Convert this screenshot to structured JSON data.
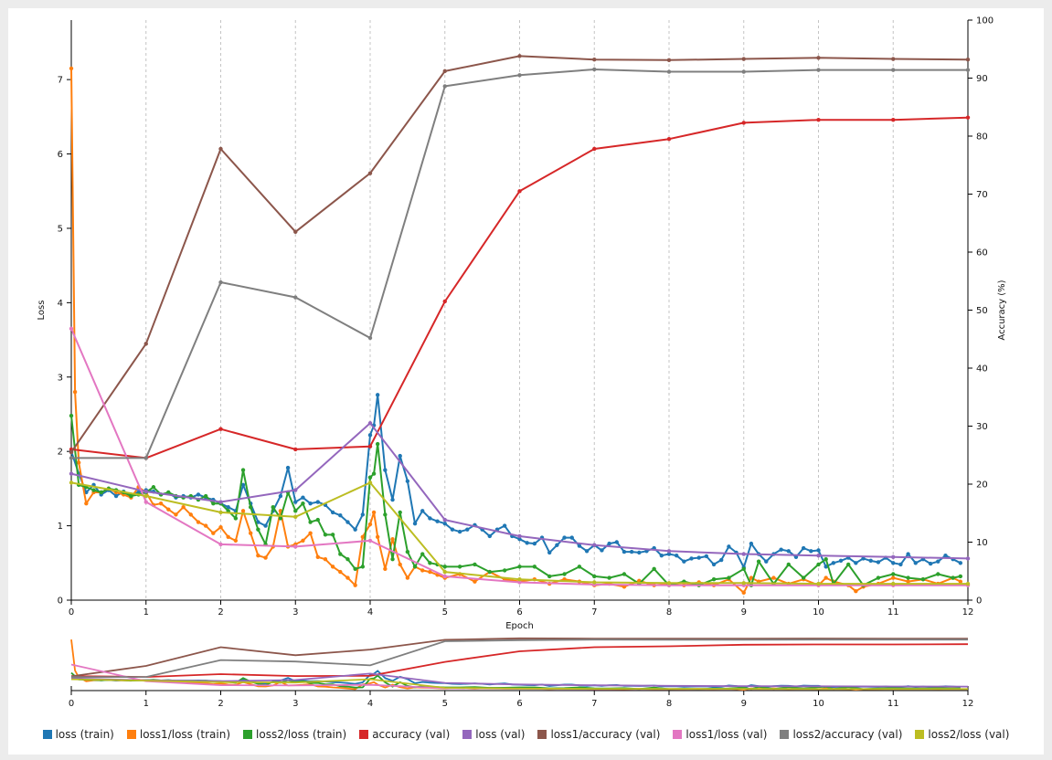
{
  "chart_data": {
    "type": "line",
    "title": "",
    "xlabel": "Epoch",
    "ylabel_left": "Loss",
    "ylabel_right": "Accuracy (%)",
    "xlim": [
      0,
      12
    ],
    "ylim_left": [
      0,
      7.8
    ],
    "ylim_right": [
      0,
      100
    ],
    "x_ticks": [
      0,
      1,
      2,
      3,
      4,
      5,
      6,
      7,
      8,
      9,
      10,
      11,
      12
    ],
    "y_ticks_left": [
      0,
      1,
      2,
      3,
      4,
      5,
      6,
      7
    ],
    "y_ticks_right": [
      0,
      10,
      20,
      30,
      40,
      50,
      60,
      70,
      80,
      90,
      100
    ],
    "grid": "vertical dashed at each epoch",
    "legend": "bottom",
    "series": [
      {
        "name": "loss (train)",
        "axis": "left",
        "color": "#1f77b4",
        "x": [
          0,
          0.1,
          0.2,
          0.3,
          0.4,
          0.5,
          0.6,
          0.7,
          0.8,
          0.9,
          1.0,
          1.1,
          1.2,
          1.3,
          1.4,
          1.5,
          1.6,
          1.7,
          1.8,
          1.9,
          2.0,
          2.1,
          2.2,
          2.3,
          2.4,
          2.5,
          2.6,
          2.7,
          2.8,
          2.9,
          3.0,
          3.1,
          3.2,
          3.3,
          3.4,
          3.5,
          3.6,
          3.7,
          3.8,
          3.9,
          4.0,
          4.05,
          4.1,
          4.2,
          4.3,
          4.4,
          4.5,
          4.6,
          4.7,
          4.8,
          4.9,
          5.0,
          5.1,
          5.2,
          5.3,
          5.4,
          5.5,
          5.6,
          5.7,
          5.8,
          5.9,
          6.0,
          6.1,
          6.2,
          6.3,
          6.4,
          6.5,
          6.6,
          6.7,
          6.8,
          6.9,
          7.0,
          7.1,
          7.2,
          7.3,
          7.4,
          7.5,
          7.6,
          7.7,
          7.8,
          7.9,
          8.0,
          8.1,
          8.2,
          8.3,
          8.4,
          8.5,
          8.6,
          8.7,
          8.8,
          8.9,
          9.0,
          9.1,
          9.2,
          9.3,
          9.4,
          9.5,
          9.6,
          9.7,
          9.8,
          9.9,
          10.0,
          10.1,
          10.2,
          10.3,
          10.4,
          10.5,
          10.6,
          10.7,
          10.8,
          10.9,
          11.0,
          11.1,
          11.2,
          11.3,
          11.4,
          11.5,
          11.6,
          11.7,
          11.8,
          11.9
        ],
        "y": [
          2.0,
          1.7,
          1.45,
          1.55,
          1.42,
          1.48,
          1.4,
          1.46,
          1.42,
          1.45,
          1.48,
          1.46,
          1.42,
          1.44,
          1.38,
          1.4,
          1.38,
          1.42,
          1.38,
          1.35,
          1.3,
          1.25,
          1.2,
          1.55,
          1.3,
          1.05,
          1.0,
          1.2,
          1.4,
          1.78,
          1.32,
          1.38,
          1.3,
          1.32,
          1.28,
          1.18,
          1.14,
          1.05,
          0.95,
          1.15,
          2.22,
          2.35,
          2.76,
          1.75,
          1.35,
          1.94,
          1.6,
          1.03,
          1.2,
          1.1,
          1.06,
          1.03,
          0.95,
          0.92,
          0.95,
          1.01,
          0.95,
          0.86,
          0.95,
          1.0,
          0.86,
          0.82,
          0.77,
          0.76,
          0.84,
          0.64,
          0.74,
          0.84,
          0.84,
          0.73,
          0.66,
          0.74,
          0.67,
          0.76,
          0.78,
          0.65,
          0.65,
          0.64,
          0.66,
          0.7,
          0.6,
          0.62,
          0.6,
          0.52,
          0.56,
          0.57,
          0.59,
          0.48,
          0.54,
          0.72,
          0.64,
          0.44,
          0.76,
          0.62,
          0.52,
          0.62,
          0.68,
          0.66,
          0.58,
          0.7,
          0.66,
          0.67,
          0.45,
          0.5,
          0.53,
          0.57,
          0.5,
          0.56,
          0.53,
          0.51,
          0.57,
          0.5,
          0.48,
          0.62,
          0.5,
          0.55,
          0.49,
          0.52,
          0.6,
          0.55,
          0.5
        ]
      },
      {
        "name": "loss1/loss (train)",
        "axis": "left",
        "color": "#ff7f0e",
        "x": [
          0,
          0.05,
          0.1,
          0.2,
          0.3,
          0.4,
          0.5,
          0.6,
          0.7,
          0.8,
          0.9,
          1.0,
          1.1,
          1.2,
          1.3,
          1.4,
          1.5,
          1.6,
          1.7,
          1.8,
          1.9,
          2.0,
          2.1,
          2.2,
          2.3,
          2.4,
          2.5,
          2.6,
          2.7,
          2.8,
          2.9,
          3.0,
          3.1,
          3.2,
          3.3,
          3.4,
          3.5,
          3.6,
          3.7,
          3.8,
          3.9,
          4.0,
          4.05,
          4.1,
          4.2,
          4.3,
          4.4,
          4.5,
          4.6,
          4.7,
          4.8,
          4.9,
          5.0,
          5.2,
          5.4,
          5.6,
          5.8,
          6.0,
          6.2,
          6.4,
          6.6,
          6.8,
          7.0,
          7.2,
          7.4,
          7.6,
          7.8,
          8.0,
          8.2,
          8.4,
          8.6,
          8.8,
          9.0,
          9.1,
          9.2,
          9.4,
          9.6,
          9.8,
          10.0,
          10.1,
          10.2,
          10.4,
          10.5,
          10.6,
          10.8,
          11.0,
          11.2,
          11.4,
          11.6,
          11.8,
          11.9
        ],
        "y": [
          7.15,
          2.8,
          1.85,
          1.3,
          1.45,
          1.45,
          1.5,
          1.45,
          1.42,
          1.38,
          1.52,
          1.45,
          1.28,
          1.3,
          1.22,
          1.15,
          1.25,
          1.15,
          1.05,
          1.0,
          0.9,
          0.98,
          0.85,
          0.8,
          1.2,
          0.9,
          0.6,
          0.57,
          0.72,
          1.2,
          0.72,
          0.75,
          0.8,
          0.9,
          0.58,
          0.55,
          0.45,
          0.38,
          0.3,
          0.2,
          0.85,
          1.02,
          1.18,
          0.85,
          0.42,
          0.82,
          0.48,
          0.3,
          0.45,
          0.4,
          0.38,
          0.34,
          0.3,
          0.35,
          0.25,
          0.38,
          0.28,
          0.25,
          0.28,
          0.22,
          0.28,
          0.25,
          0.2,
          0.22,
          0.18,
          0.26,
          0.2,
          0.22,
          0.2,
          0.24,
          0.2,
          0.28,
          0.1,
          0.3,
          0.25,
          0.3,
          0.22,
          0.28,
          0.2,
          0.3,
          0.25,
          0.2,
          0.12,
          0.18,
          0.22,
          0.3,
          0.25,
          0.28,
          0.22,
          0.3,
          0.25
        ]
      },
      {
        "name": "loss2/loss (train)",
        "axis": "left",
        "color": "#2ca02c",
        "x": [
          0,
          0.1,
          0.2,
          0.3,
          0.4,
          0.5,
          0.6,
          0.7,
          0.8,
          0.9,
          1.0,
          1.1,
          1.2,
          1.3,
          1.4,
          1.5,
          1.6,
          1.7,
          1.8,
          1.9,
          2.0,
          2.1,
          2.2,
          2.3,
          2.4,
          2.5,
          2.6,
          2.7,
          2.8,
          2.9,
          3.0,
          3.1,
          3.2,
          3.3,
          3.4,
          3.5,
          3.6,
          3.7,
          3.8,
          3.9,
          4.0,
          4.05,
          4.1,
          4.2,
          4.3,
          4.4,
          4.5,
          4.6,
          4.7,
          4.8,
          4.9,
          5.0,
          5.2,
          5.4,
          5.6,
          5.8,
          6.0,
          6.2,
          6.4,
          6.6,
          6.8,
          7.0,
          7.2,
          7.4,
          7.6,
          7.8,
          8.0,
          8.2,
          8.4,
          8.6,
          8.8,
          9.0,
          9.1,
          9.2,
          9.4,
          9.6,
          9.8,
          10.0,
          10.1,
          10.2,
          10.4,
          10.6,
          10.8,
          11.0,
          11.2,
          11.4,
          11.6,
          11.8,
          11.9
        ],
        "y": [
          2.48,
          1.55,
          1.52,
          1.48,
          1.45,
          1.5,
          1.48,
          1.45,
          1.4,
          1.42,
          1.45,
          1.52,
          1.42,
          1.45,
          1.4,
          1.38,
          1.4,
          1.35,
          1.4,
          1.3,
          1.3,
          1.2,
          1.1,
          1.75,
          1.25,
          0.95,
          0.75,
          1.25,
          1.1,
          1.45,
          1.2,
          1.3,
          1.05,
          1.08,
          0.88,
          0.88,
          0.62,
          0.55,
          0.42,
          0.45,
          1.65,
          1.7,
          2.1,
          1.15,
          0.55,
          1.18,
          0.65,
          0.45,
          0.62,
          0.5,
          0.48,
          0.45,
          0.45,
          0.48,
          0.38,
          0.4,
          0.45,
          0.45,
          0.32,
          0.35,
          0.45,
          0.32,
          0.3,
          0.35,
          0.22,
          0.42,
          0.2,
          0.25,
          0.2,
          0.28,
          0.3,
          0.42,
          0.2,
          0.52,
          0.22,
          0.48,
          0.3,
          0.48,
          0.55,
          0.22,
          0.48,
          0.2,
          0.3,
          0.35,
          0.3,
          0.28,
          0.35,
          0.3,
          0.32
        ]
      },
      {
        "name": "accuracy (val)",
        "axis": "right",
        "color": "#d62728",
        "x": [
          0,
          1,
          2,
          3,
          4,
          5,
          6,
          7,
          8,
          9,
          10,
          11,
          12
        ],
        "y": [
          26,
          24.5,
          29.5,
          26,
          26.5,
          51.5,
          70.5,
          77.8,
          79.5,
          82.3,
          82.8,
          82.8,
          83.2
        ]
      },
      {
        "name": "loss (val)",
        "axis": "left",
        "color": "#9467bd",
        "x": [
          0,
          1,
          2,
          3,
          4,
          5,
          6,
          7,
          8,
          9,
          10,
          11,
          12
        ],
        "y": [
          1.7,
          1.46,
          1.32,
          1.48,
          2.38,
          1.08,
          0.86,
          0.74,
          0.66,
          0.62,
          0.6,
          0.58,
          0.56
        ]
      },
      {
        "name": "loss1/accuracy (val)",
        "axis": "right",
        "color": "#8c564b",
        "x": [
          0,
          1,
          2,
          3,
          4,
          5,
          6,
          7,
          8,
          9,
          10,
          11,
          12
        ],
        "y": [
          25.5,
          44.2,
          77.8,
          63.5,
          73.6,
          91.2,
          93.8,
          93.2,
          93.1,
          93.3,
          93.5,
          93.3,
          93.2
        ]
      },
      {
        "name": "loss1/loss (val)",
        "axis": "left",
        "color": "#e377c2",
        "x": [
          0,
          1,
          2,
          3,
          4,
          5,
          6,
          7,
          8,
          9,
          10,
          11,
          12
        ],
        "y": [
          3.65,
          1.32,
          0.75,
          0.72,
          0.8,
          0.32,
          0.24,
          0.21,
          0.2,
          0.2,
          0.2,
          0.2,
          0.2
        ]
      },
      {
        "name": "loss2/accuracy (val)",
        "axis": "right",
        "color": "#7f7f7f",
        "x": [
          0,
          1,
          2,
          3,
          4,
          5,
          6,
          7,
          8,
          9,
          10,
          11,
          12
        ],
        "y": [
          24.5,
          24.5,
          54.8,
          52.2,
          45.2,
          88.6,
          90.5,
          91.5,
          91.1,
          91.1,
          91.4,
          91.4,
          91.4
        ]
      },
      {
        "name": "loss2/loss (val)",
        "axis": "left",
        "color": "#bcbd22",
        "x": [
          0,
          1,
          2,
          3,
          4,
          5,
          6,
          7,
          8,
          9,
          10,
          11,
          12
        ],
        "y": [
          1.58,
          1.4,
          1.18,
          1.12,
          1.58,
          0.38,
          0.28,
          0.24,
          0.23,
          0.23,
          0.22,
          0.22,
          0.22
        ]
      }
    ]
  }
}
